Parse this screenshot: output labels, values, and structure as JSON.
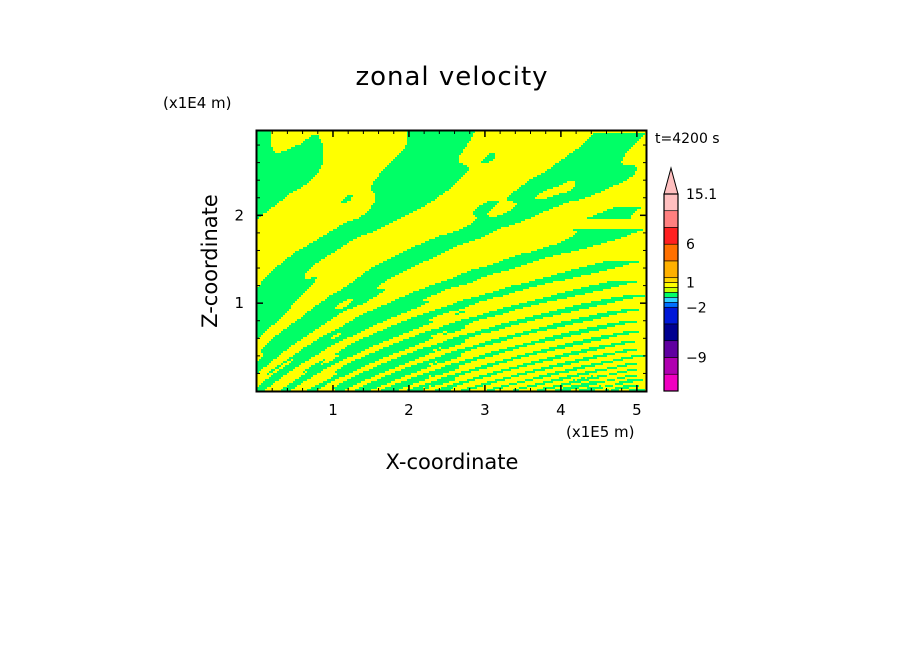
{
  "chart_data": {
    "type": "heatmap",
    "title": "zonal velocity",
    "time_label": "t=4200 s",
    "xlabel": "X-coordinate",
    "ylabel": "Z-coordinate",
    "x_scale_label": "(x1E5 m)",
    "y_scale_label": "(x1E4 m)",
    "xlim": [
      0,
      5.12
    ],
    "ylim": [
      0,
      2.96
    ],
    "x_ticks": [
      "1",
      "2",
      "3",
      "4",
      "5"
    ],
    "x_tick_values": [
      1,
      2,
      3,
      4,
      5
    ],
    "y_ticks": [
      "1",
      "2"
    ],
    "y_tick_values": [
      1,
      2
    ],
    "field_colors": [
      "#ffff00",
      "#00ff66"
    ],
    "colorbar": {
      "labels": [
        "15.1",
        "6",
        "1",
        "-2",
        "-9"
      ],
      "label_display": [
        "15.1",
        "6",
        "1",
        "−2",
        "−9"
      ],
      "label_levels": [
        15.1,
        6,
        1,
        -2,
        -9
      ],
      "levels_top_to_bottom": [
        15.1,
        12,
        9,
        6,
        4,
        2,
        1,
        0.5,
        0,
        -0.5,
        -1,
        -2,
        -4,
        -6,
        -9,
        -12,
        -15.1
      ],
      "colors_top_to_bottom": [
        "#ffbfbf",
        "#ff8080",
        "#ff2020",
        "#ff7000",
        "#ffb000",
        "#ffd800",
        "#ffff00",
        "#c8ff00",
        "#00ff66",
        "#30d0ff",
        "#0070ff",
        "#0018d8",
        "#000090",
        "#6000a0",
        "#b000b0",
        "#f000c0"
      ],
      "extend_top": true
    }
  }
}
